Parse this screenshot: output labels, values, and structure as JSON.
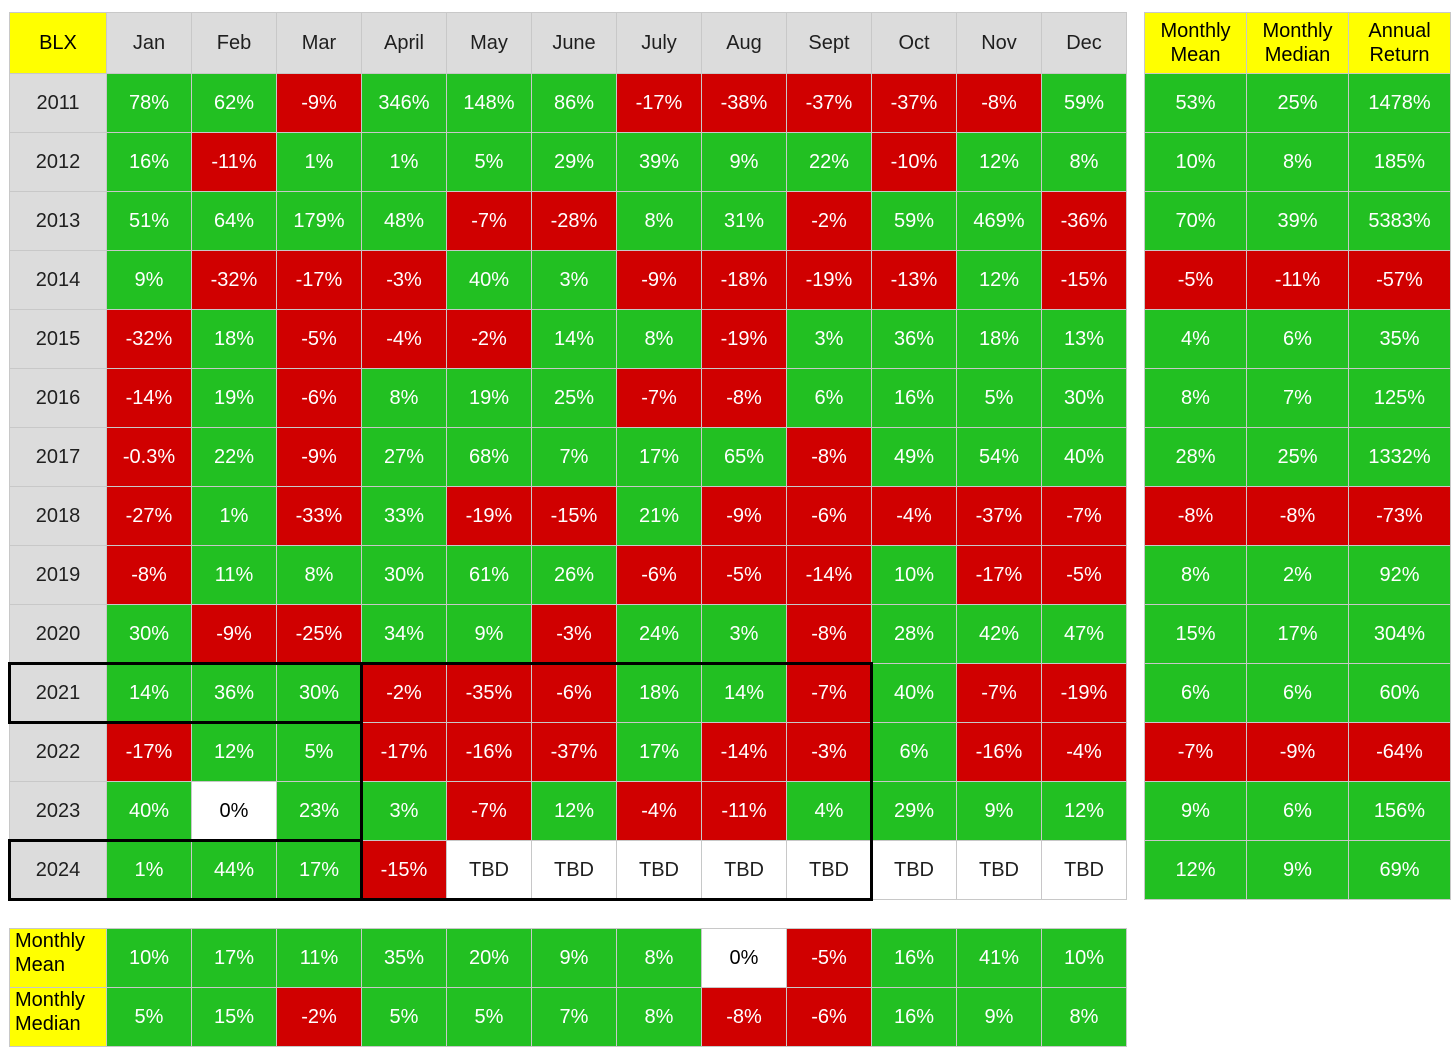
{
  "header": {
    "ticker": "BLX",
    "months": [
      "Jan",
      "Feb",
      "Mar",
      "April",
      "May",
      "June",
      "July",
      "Aug",
      "Sept",
      "Oct",
      "Nov",
      "Dec"
    ],
    "stats": [
      [
        "Monthly",
        "Mean"
      ],
      [
        "Monthly",
        "Median"
      ],
      [
        "Annual",
        "Return"
      ]
    ]
  },
  "footer_labels": [
    [
      "Monthly",
      "Mean"
    ],
    [
      "Monthly",
      "Median"
    ]
  ],
  "colors": {
    "positive": "#22c022",
    "negative": "#d00000",
    "header_yellow": "#ffff00",
    "header_gray": "#dcdcdc"
  },
  "chart_data": {
    "type": "table",
    "title": "",
    "columns": [
      "Jan",
      "Feb",
      "Mar",
      "April",
      "May",
      "June",
      "July",
      "Aug",
      "Sept",
      "Oct",
      "Nov",
      "Dec"
    ],
    "rows": [
      {
        "year": "2011",
        "values": [
          "78%",
          "62%",
          "-9%",
          "346%",
          "148%",
          "86%",
          "-17%",
          "-38%",
          "-37%",
          "-37%",
          "-8%",
          "59%"
        ],
        "mean": "53%",
        "median": "25%",
        "annual": "1478%"
      },
      {
        "year": "2012",
        "values": [
          "16%",
          "-11%",
          "1%",
          "1%",
          "5%",
          "29%",
          "39%",
          "9%",
          "22%",
          "-10%",
          "12%",
          "8%"
        ],
        "mean": "10%",
        "median": "8%",
        "annual": "185%"
      },
      {
        "year": "2013",
        "values": [
          "51%",
          "64%",
          "179%",
          "48%",
          "-7%",
          "-28%",
          "8%",
          "31%",
          "-2%",
          "59%",
          "469%",
          "-36%"
        ],
        "mean": "70%",
        "median": "39%",
        "annual": "5383%"
      },
      {
        "year": "2014",
        "values": [
          "9%",
          "-32%",
          "-17%",
          "-3%",
          "40%",
          "3%",
          "-9%",
          "-18%",
          "-19%",
          "-13%",
          "12%",
          "-15%"
        ],
        "mean": "-5%",
        "median": "-11%",
        "annual": "-57%"
      },
      {
        "year": "2015",
        "values": [
          "-32%",
          "18%",
          "-5%",
          "-4%",
          "-2%",
          "14%",
          "8%",
          "-19%",
          "3%",
          "36%",
          "18%",
          "13%"
        ],
        "mean": "4%",
        "median": "6%",
        "annual": "35%"
      },
      {
        "year": "2016",
        "values": [
          "-14%",
          "19%",
          "-6%",
          "8%",
          "19%",
          "25%",
          "-7%",
          "-8%",
          "6%",
          "16%",
          "5%",
          "30%"
        ],
        "mean": "8%",
        "median": "7%",
        "annual": "125%"
      },
      {
        "year": "2017",
        "values": [
          "-0.3%",
          "22%",
          "-9%",
          "27%",
          "68%",
          "7%",
          "17%",
          "65%",
          "-8%",
          "49%",
          "54%",
          "40%"
        ],
        "mean": "28%",
        "median": "25%",
        "annual": "1332%"
      },
      {
        "year": "2018",
        "values": [
          "-27%",
          "1%",
          "-33%",
          "33%",
          "-19%",
          "-15%",
          "21%",
          "-9%",
          "-6%",
          "-4%",
          "-37%",
          "-7%"
        ],
        "mean": "-8%",
        "median": "-8%",
        "annual": "-73%"
      },
      {
        "year": "2019",
        "values": [
          "-8%",
          "11%",
          "8%",
          "30%",
          "61%",
          "26%",
          "-6%",
          "-5%",
          "-14%",
          "10%",
          "-17%",
          "-5%"
        ],
        "mean": "8%",
        "median": "2%",
        "annual": "92%"
      },
      {
        "year": "2020",
        "values": [
          "30%",
          "-9%",
          "-25%",
          "34%",
          "9%",
          "-3%",
          "24%",
          "3%",
          "-8%",
          "28%",
          "42%",
          "47%"
        ],
        "mean": "15%",
        "median": "17%",
        "annual": "304%"
      },
      {
        "year": "2021",
        "values": [
          "14%",
          "36%",
          "30%",
          "-2%",
          "-35%",
          "-6%",
          "18%",
          "14%",
          "-7%",
          "40%",
          "-7%",
          "-19%"
        ],
        "mean": "6%",
        "median": "6%",
        "annual": "60%"
      },
      {
        "year": "2022",
        "values": [
          "-17%",
          "12%",
          "5%",
          "-17%",
          "-16%",
          "-37%",
          "17%",
          "-14%",
          "-3%",
          "6%",
          "-16%",
          "-4%"
        ],
        "mean": "-7%",
        "median": "-9%",
        "annual": "-64%"
      },
      {
        "year": "2023",
        "values": [
          "40%",
          "0%",
          "23%",
          "3%",
          "-7%",
          "12%",
          "-4%",
          "-11%",
          "4%",
          "29%",
          "9%",
          "12%"
        ],
        "mean": "9%",
        "median": "6%",
        "annual": "156%"
      },
      {
        "year": "2024",
        "values": [
          "1%",
          "44%",
          "17%",
          "-15%",
          "TBD",
          "TBD",
          "TBD",
          "TBD",
          "TBD",
          "TBD",
          "TBD",
          "TBD"
        ],
        "mean": "12%",
        "median": "9%",
        "annual": "69%"
      }
    ],
    "monthly_mean": [
      "10%",
      "17%",
      "11%",
      "35%",
      "20%",
      "9%",
      "8%",
      "0%",
      "-5%",
      "16%",
      "41%",
      "10%"
    ],
    "monthly_median": [
      "5%",
      "15%",
      "-2%",
      "5%",
      "5%",
      "7%",
      "8%",
      "-8%",
      "-6%",
      "16%",
      "9%",
      "8%"
    ]
  }
}
